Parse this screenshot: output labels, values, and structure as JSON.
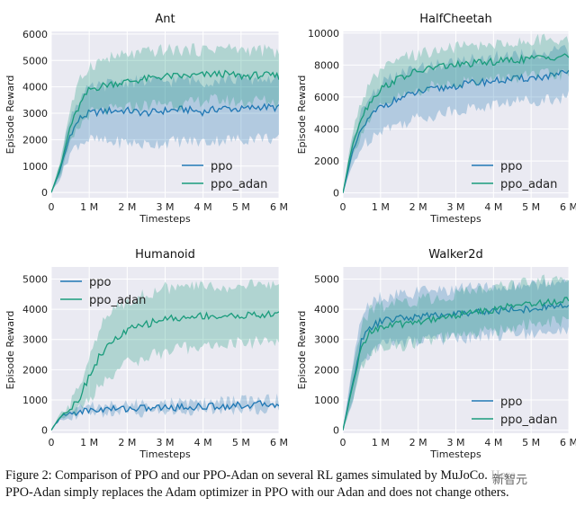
{
  "caption": {
    "line1": "Figure 2: Comparison of PPO and our PPO-Adan on several RL games simulated by MuJoCo. Here",
    "line2": "PPO-Adan simply replaces the Adam optimizer in PPO with our Adan and does not change others."
  },
  "watermark": "新智元",
  "colors": {
    "ppo": "#1f77b4",
    "ppo_adan": "#1a9c7c",
    "panel_bg": "#eaeaf2",
    "grid": "#ffffff"
  },
  "chart_data": [
    {
      "type": "line",
      "title": "Ant",
      "xlabel": "Timesteps",
      "ylabel": "Episode Reward",
      "xlim": [
        0,
        6000000
      ],
      "ylim": [
        -200,
        6100
      ],
      "xticks": [
        0,
        1000000,
        2000000,
        3000000,
        4000000,
        5000000,
        6000000
      ],
      "xtick_labels": [
        "0",
        "1 M",
        "2 M",
        "3 M",
        "4 M",
        "5 M",
        "6 M"
      ],
      "yticks": [
        0,
        1000,
        2000,
        3000,
        4000,
        5000,
        6000
      ],
      "ytick_labels": [
        "0",
        "1000",
        "2000",
        "3000",
        "4000",
        "5000",
        "6000"
      ],
      "grid": true,
      "legend_position": "bottom-right",
      "x": [
        0,
        250000,
        500000,
        750000,
        1000000,
        1500000,
        2000000,
        2500000,
        3000000,
        3500000,
        4000000,
        4500000,
        5000000,
        5500000,
        6000000
      ],
      "series": [
        {
          "name": "ppo",
          "values": [
            0,
            900,
            2200,
            2800,
            3000,
            3100,
            3100,
            3000,
            3100,
            3150,
            3050,
            3200,
            3150,
            3250,
            3200
          ],
          "lower": [
            0,
            600,
            1500,
            1900,
            2000,
            1900,
            1900,
            1800,
            1900,
            1950,
            1900,
            2000,
            2000,
            2100,
            2000
          ],
          "upper": [
            0,
            1200,
            2900,
            3600,
            3900,
            4100,
            4200,
            4200,
            4200,
            4300,
            4200,
            4300,
            4300,
            4300,
            4300
          ]
        },
        {
          "name": "ppo_adan",
          "values": [
            0,
            1000,
            2500,
            3300,
            3900,
            4100,
            4200,
            4300,
            4400,
            4400,
            4450,
            4500,
            4400,
            4450,
            4400
          ],
          "lower": [
            0,
            700,
            1800,
            2500,
            3000,
            3100,
            3200,
            3300,
            3400,
            3300,
            3500,
            3500,
            3400,
            3500,
            3400
          ],
          "upper": [
            0,
            1300,
            3200,
            4200,
            4800,
            5100,
            5200,
            5300,
            5400,
            5400,
            5400,
            5500,
            5400,
            5400,
            5300
          ]
        }
      ]
    },
    {
      "type": "line",
      "title": "HalfCheetah",
      "xlabel": "Timesteps",
      "ylabel": "Episode Reward",
      "xlim": [
        0,
        6000000
      ],
      "ylim": [
        -300,
        10100
      ],
      "xticks": [
        0,
        1000000,
        2000000,
        3000000,
        4000000,
        5000000,
        6000000
      ],
      "xtick_labels": [
        "0",
        "1 M",
        "2 M",
        "3 M",
        "4 M",
        "5 M",
        "6 M"
      ],
      "yticks": [
        0,
        2000,
        4000,
        6000,
        8000,
        10000
      ],
      "ytick_labels": [
        "0",
        "2000",
        "4000",
        "6000",
        "8000",
        "10000"
      ],
      "grid": true,
      "legend_position": "bottom-right",
      "x": [
        0,
        250000,
        500000,
        750000,
        1000000,
        1500000,
        2000000,
        2500000,
        3000000,
        3500000,
        4000000,
        4500000,
        5000000,
        5500000,
        6000000
      ],
      "series": [
        {
          "name": "ppo",
          "values": [
            0,
            2500,
            4000,
            4800,
            5400,
            5900,
            6300,
            6500,
            6700,
            6900,
            7000,
            7100,
            7200,
            7300,
            7500
          ],
          "lower": [
            0,
            1700,
            2900,
            3500,
            4000,
            4300,
            4700,
            4900,
            5200,
            5300,
            5500,
            5700,
            5800,
            5900,
            6000
          ],
          "upper": [
            0,
            3300,
            5100,
            6100,
            6800,
            7400,
            7800,
            8000,
            8200,
            8400,
            8500,
            8600,
            8700,
            8800,
            8900
          ]
        },
        {
          "name": "ppo_adan",
          "values": [
            0,
            3000,
            4800,
            5800,
            6500,
            7200,
            7600,
            7900,
            8000,
            8100,
            8200,
            8300,
            8400,
            8500,
            8600
          ],
          "lower": [
            0,
            2200,
            3800,
            4700,
            5300,
            6000,
            6400,
            6700,
            6900,
            7000,
            7100,
            7200,
            7300,
            7400,
            7400
          ],
          "upper": [
            0,
            3800,
            5800,
            6900,
            7600,
            8300,
            8700,
            8900,
            9100,
            9200,
            9300,
            9400,
            9500,
            9600,
            9700
          ]
        }
      ]
    },
    {
      "type": "line",
      "title": "Humanoid",
      "xlabel": "Timesteps",
      "ylabel": "Episode Reward",
      "xlim": [
        0,
        6000000
      ],
      "ylim": [
        -100,
        5400
      ],
      "xticks": [
        0,
        1000000,
        2000000,
        3000000,
        4000000,
        5000000,
        6000000
      ],
      "xtick_labels": [
        "0",
        "1 M",
        "2 M",
        "3 M",
        "4 M",
        "5 M",
        "6 M"
      ],
      "yticks": [
        0,
        1000,
        2000,
        3000,
        4000,
        5000
      ],
      "ytick_labels": [
        "0",
        "1000",
        "2000",
        "3000",
        "4000",
        "5000"
      ],
      "grid": true,
      "legend_position": "top-left",
      "x": [
        0,
        250000,
        500000,
        750000,
        1000000,
        1250000,
        1500000,
        2000000,
        2500000,
        3000000,
        3500000,
        4000000,
        4500000,
        5000000,
        5500000,
        6000000
      ],
      "series": [
        {
          "name": "ppo",
          "values": [
            0,
            450,
            550,
            620,
            650,
            680,
            700,
            720,
            730,
            750,
            760,
            780,
            800,
            820,
            850,
            880
          ],
          "lower": [
            0,
            400,
            480,
            540,
            570,
            590,
            610,
            630,
            640,
            650,
            660,
            670,
            690,
            700,
            720,
            740
          ],
          "upper": [
            0,
            500,
            620,
            700,
            740,
            770,
            800,
            820,
            840,
            860,
            880,
            900,
            930,
            950,
            980,
            1020
          ]
        },
        {
          "name": "ppo_adan",
          "values": [
            0,
            500,
            700,
            1100,
            1800,
            2400,
            2800,
            3300,
            3500,
            3700,
            3700,
            3800,
            3750,
            3800,
            3800,
            3850
          ],
          "lower": [
            0,
            450,
            550,
            700,
            1000,
            1400,
            1800,
            2200,
            2400,
            2600,
            2700,
            2800,
            2800,
            2900,
            2900,
            3000
          ],
          "upper": [
            0,
            550,
            850,
            1500,
            2500,
            3300,
            3800,
            4300,
            4500,
            4700,
            4700,
            4800,
            4700,
            4800,
            4800,
            4800
          ]
        }
      ]
    },
    {
      "type": "line",
      "title": "Walker2d",
      "xlabel": "Timesteps",
      "ylabel": "Episode Reward",
      "xlim": [
        0,
        6000000
      ],
      "ylim": [
        -100,
        5400
      ],
      "xticks": [
        0,
        1000000,
        2000000,
        3000000,
        4000000,
        5000000,
        6000000
      ],
      "xtick_labels": [
        "0",
        "1 M",
        "2 M",
        "3 M",
        "4 M",
        "5 M",
        "6 M"
      ],
      "yticks": [
        0,
        1000,
        2000,
        3000,
        4000,
        5000
      ],
      "ytick_labels": [
        "0",
        "1000",
        "2000",
        "3000",
        "4000",
        "5000"
      ],
      "grid": true,
      "legend_position": "bottom-right",
      "x": [
        0,
        250000,
        500000,
        750000,
        1000000,
        1500000,
        2000000,
        2500000,
        3000000,
        3500000,
        4000000,
        4500000,
        5000000,
        5500000,
        6000000
      ],
      "series": [
        {
          "name": "ppo",
          "values": [
            0,
            1500,
            3000,
            3400,
            3600,
            3700,
            3750,
            3800,
            3850,
            3900,
            3950,
            4000,
            4000,
            4100,
            4100
          ],
          "lower": [
            0,
            900,
            2200,
            2600,
            2800,
            2900,
            2950,
            3000,
            3050,
            3100,
            3150,
            3200,
            3200,
            3250,
            3250
          ],
          "upper": [
            0,
            2100,
            3800,
            4200,
            4400,
            4500,
            4550,
            4600,
            4650,
            4700,
            4750,
            4800,
            4800,
            4900,
            4900
          ]
        },
        {
          "name": "ppo_adan",
          "values": [
            0,
            1400,
            2800,
            3300,
            3400,
            3500,
            3600,
            3700,
            3800,
            3900,
            4000,
            4100,
            4200,
            4250,
            4300
          ],
          "lower": [
            0,
            900,
            2100,
            2600,
            2700,
            2800,
            2900,
            3000,
            3100,
            3200,
            3300,
            3400,
            3500,
            3550,
            3600
          ],
          "upper": [
            0,
            1900,
            3500,
            4000,
            4100,
            4200,
            4300,
            4400,
            4500,
            4600,
            4700,
            4800,
            4900,
            4950,
            5000
          ]
        }
      ]
    }
  ]
}
